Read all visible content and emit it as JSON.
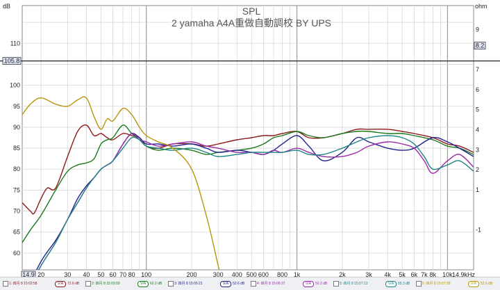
{
  "chart_data": {
    "type": "line",
    "title": "SPL",
    "subtitle": "2  yamaha A4A重做自動調校 BY UPS",
    "left_unit": "dB",
    "right_unit": "ohm",
    "x_scale": "log",
    "xlim": [
      15,
      14900
    ],
    "ylim": [
      56,
      119
    ],
    "right_ylim": [
      -3,
      10.2
    ],
    "grid": true,
    "x_ticks": [
      {
        "v": 14.9,
        "label": "14.9",
        "boxed": true
      },
      {
        "v": 20,
        "label": "20"
      },
      {
        "v": 30,
        "label": "30"
      },
      {
        "v": 40,
        "label": "40"
      },
      {
        "v": 50,
        "label": "50"
      },
      {
        "v": 60,
        "label": "60"
      },
      {
        "v": 70,
        "label": "70"
      },
      {
        "v": 80,
        "label": "80"
      },
      {
        "v": 100,
        "label": "100"
      },
      {
        "v": 200,
        "label": "200"
      },
      {
        "v": 300,
        "label": "300"
      },
      {
        "v": 400,
        "label": "400"
      },
      {
        "v": 500,
        "label": "500"
      },
      {
        "v": 600,
        "label": "600"
      },
      {
        "v": 800,
        "label": "800"
      },
      {
        "v": 1000,
        "label": "1k"
      },
      {
        "v": 2000,
        "label": "2k"
      },
      {
        "v": 3000,
        "label": "3k"
      },
      {
        "v": 4000,
        "label": "4k"
      },
      {
        "v": 5000,
        "label": "5k"
      },
      {
        "v": 6000,
        "label": "6k"
      },
      {
        "v": 7000,
        "label": "7k"
      },
      {
        "v": 8000,
        "label": "8k"
      },
      {
        "v": 10000,
        "label": "10k"
      },
      {
        "v": 14900,
        "label": "14.9kHz"
      }
    ],
    "y_ticks": [
      60,
      65,
      70,
      75,
      80,
      85,
      90,
      95,
      100,
      110
    ],
    "y_marker": {
      "value": 105.8,
      "label": "105.8"
    },
    "right_ticks": [
      -1,
      1,
      2,
      3,
      4,
      5,
      6,
      7,
      9
    ],
    "right_marker": {
      "value": 8.2,
      "label": "8.2"
    },
    "series": [
      {
        "name": "1: 四月 8 15:02:58",
        "value_label": "72.6 dB",
        "color": "#8b1a1a",
        "x": [
          15,
          17,
          18,
          20,
          22,
          25,
          30,
          35,
          40,
          45,
          50,
          55,
          60,
          70,
          80,
          90,
          100,
          120,
          150,
          200,
          250,
          300,
          400,
          500,
          600,
          700,
          800,
          1000,
          1200,
          1500,
          2000,
          2500,
          3000,
          4000,
          5000,
          6000,
          8000,
          10000,
          12000,
          14900
        ],
        "y": [
          72,
          70,
          69.5,
          73,
          75.5,
          75.5,
          83,
          89,
          90.5,
          88,
          88.5,
          87.5,
          87,
          88.5,
          88,
          87.5,
          85.5,
          85,
          86,
          86,
          85.5,
          86,
          87,
          87.5,
          88,
          88,
          88.5,
          89,
          87.5,
          87.5,
          88.5,
          89.5,
          89.5,
          89.5,
          89,
          88.5,
          87.5,
          86,
          85.5,
          84
        ]
      },
      {
        "name": "2: 四月 8 15:03:59",
        "value_label": "62.2 dB",
        "color": "#1a7a1a",
        "x": [
          15,
          17,
          20,
          25,
          30,
          35,
          40,
          45,
          50,
          55,
          60,
          70,
          80,
          90,
          100,
          120,
          150,
          200,
          250,
          300,
          400,
          500,
          600,
          700,
          800,
          1000,
          1200,
          1500,
          2000,
          2500,
          3000,
          4000,
          5000,
          6000,
          8000,
          10000,
          12000,
          14900
        ],
        "y": [
          62.5,
          65.5,
          69,
          75,
          79.5,
          81,
          81.5,
          82.5,
          86,
          87,
          87.5,
          90.5,
          88.5,
          87,
          85.5,
          84.5,
          85,
          84.5,
          83.5,
          84,
          84.5,
          85,
          86,
          87.5,
          88,
          89,
          88,
          87.5,
          88.5,
          89,
          89,
          88.5,
          88.5,
          88,
          87,
          85.5,
          85,
          83.5
        ]
      },
      {
        "name": "3: 四月 8 15:05:21",
        "value_label": "52.6 dB",
        "color": "#23238f",
        "x": [
          15,
          20,
          25,
          30,
          35,
          40,
          45,
          50,
          55,
          60,
          70,
          80,
          90,
          100,
          120,
          150,
          200,
          250,
          300,
          400,
          500,
          600,
          700,
          800,
          1000,
          1200,
          1500,
          2000,
          2500,
          3000,
          4000,
          5000,
          6000,
          8000,
          10000,
          12000,
          14900
        ],
        "y": [
          49,
          58,
          63,
          68,
          73,
          76,
          78,
          80,
          81,
          82,
          86,
          88.5,
          87.5,
          86,
          86,
          85.5,
          86,
          85,
          84,
          84.5,
          84,
          83.5,
          84.5,
          86,
          88,
          85.5,
          82,
          84,
          87.5,
          86.5,
          85,
          84.5,
          85,
          87.5,
          86.5,
          85,
          83
        ]
      },
      {
        "name": "4: 四月 8 15:06:37",
        "value_label": "52.2 dB",
        "color": "#9b2aa8",
        "x": [
          15,
          20,
          25,
          30,
          35,
          40,
          45,
          50,
          55,
          60,
          70,
          80,
          90,
          100,
          120,
          150,
          200,
          250,
          300,
          400,
          500,
          600,
          700,
          800,
          1000,
          1200,
          1500,
          2000,
          2500,
          3000,
          4000,
          5000,
          6000,
          7000,
          8000,
          10000,
          12000,
          14900
        ],
        "y": [
          49,
          57,
          62.5,
          68,
          72,
          75.5,
          78,
          80,
          81,
          82,
          86,
          88.5,
          87,
          86.5,
          85.5,
          86,
          86.5,
          85.5,
          85,
          84,
          84,
          83.5,
          84.5,
          84,
          85,
          84,
          83,
          83,
          84,
          85.5,
          86.5,
          86,
          85,
          82,
          79,
          82,
          83.5,
          80.5
        ]
      },
      {
        "name": "5: 四月 8 15:07:13",
        "value_label": "55.3 dB",
        "color": "#1e8585",
        "x": [
          15,
          20,
          25,
          30,
          35,
          40,
          45,
          50,
          55,
          60,
          70,
          80,
          90,
          100,
          120,
          150,
          200,
          250,
          300,
          400,
          500,
          600,
          700,
          800,
          1000,
          1200,
          1500,
          2000,
          2500,
          3000,
          4000,
          5000,
          6000,
          7000,
          8000,
          10000,
          12000,
          14900
        ],
        "y": [
          49,
          57,
          62.5,
          68,
          72,
          75.5,
          78,
          80,
          81,
          82,
          85,
          87.5,
          87,
          85.5,
          85,
          84.5,
          85,
          84,
          83,
          83.5,
          84,
          84,
          84,
          84,
          84.5,
          83.5,
          83.5,
          85,
          86.5,
          87.5,
          88,
          87.5,
          86,
          83,
          80,
          81,
          82,
          79.5
        ]
      },
      {
        "name": "6: 四月 8 15:07:28",
        "value_label": "52.6 dB",
        "color": "#b8960c",
        "x": [
          15,
          17,
          20,
          25,
          30,
          35,
          40,
          45,
          50,
          55,
          60,
          70,
          80,
          90,
          100,
          120,
          150,
          200,
          250,
          300,
          310
        ],
        "y": [
          93,
          95.5,
          97,
          95.5,
          95,
          96.5,
          97,
          92.5,
          89.5,
          92,
          91.5,
          94.5,
          93,
          90,
          88,
          86.5,
          85,
          80,
          69,
          57,
          55
        ]
      }
    ]
  }
}
